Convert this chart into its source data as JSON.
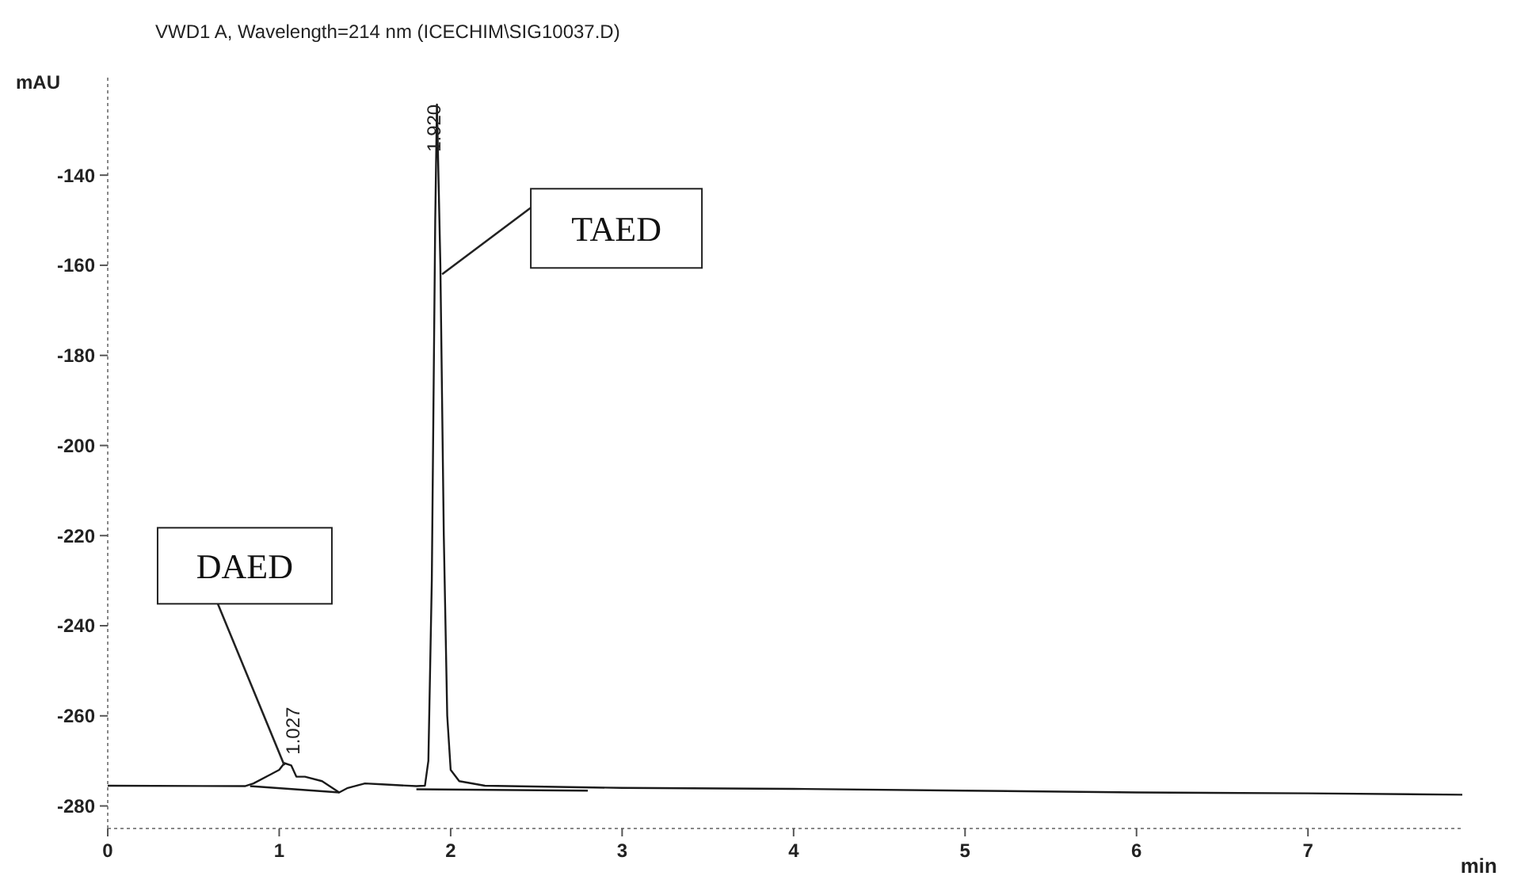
{
  "chart_data": {
    "type": "line",
    "title": "VWD1 A, Wavelength=214 nm (ICECHIM\\SIG10037.D)",
    "xlabel": "min",
    "ylabel": "mAU",
    "xlim": [
      0,
      7.9
    ],
    "xticks": [
      0,
      1,
      2,
      3,
      4,
      5,
      6,
      7
    ],
    "ylim": [
      -285,
      -118
    ],
    "yticks": [
      -140,
      -160,
      -180,
      -200,
      -220,
      -240,
      -260,
      -280
    ],
    "grid": false,
    "marker": "none",
    "line_style": "solid",
    "series": [
      {
        "color": "#1a1a1a",
        "x": [
          0,
          0.8,
          0.85,
          0.95,
          1.0,
          1.03,
          1.07,
          1.1,
          1.15,
          1.25,
          1.35,
          1.4,
          1.5,
          1.6,
          1.8,
          1.85,
          1.87,
          1.89,
          1.91,
          1.92,
          1.94,
          1.96,
          1.98,
          2.0,
          2.05,
          2.2,
          3,
          4,
          5,
          6,
          7,
          7.9
        ],
        "values": [
          -275.5,
          -275.6,
          -275,
          -273,
          -272,
          -270.5,
          -271,
          -273.5,
          -273.5,
          -274.5,
          -277,
          -276,
          -275,
          -275.2,
          -275.6,
          -275.5,
          -270,
          -230,
          -150,
          -124.3,
          -160,
          -220,
          -260,
          -272,
          -274.5,
          -275.5,
          -276,
          -276.2,
          -276.6,
          -277,
          -277.2,
          -277.5
        ]
      },
      {
        "color": "#1a1a1a",
        "x": [
          0.83,
          1.35
        ],
        "values": [
          -275.6,
          -277
        ]
      },
      {
        "color": "#1a1a1a",
        "x": [
          1.8,
          2.8
        ],
        "values": [
          -276.3,
          -276.6
        ]
      }
    ],
    "annotations": [
      {
        "text": "1.027",
        "x": 1.027,
        "y": -270
      },
      {
        "text": "1.920",
        "x": 1.92,
        "y": -124.3
      },
      {
        "text": "DAED",
        "x": 1.03,
        "y": -271
      },
      {
        "text": "TAED",
        "x": 1.95,
        "y": -162
      }
    ]
  }
}
